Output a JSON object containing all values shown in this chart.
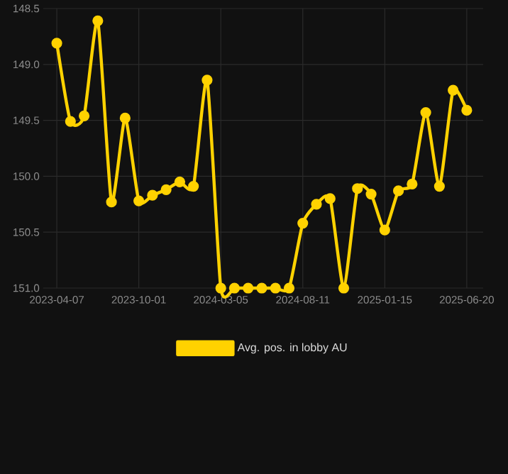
{
  "chart_data": {
    "type": "line",
    "categories": [
      "2023-04-07",
      null,
      null,
      null,
      null,
      null,
      "2023-10-01",
      null,
      null,
      null,
      null,
      null,
      "2024-03-05",
      null,
      null,
      null,
      null,
      null,
      "2024-08-11",
      null,
      null,
      null,
      null,
      null,
      "2025-01-15",
      null,
      null,
      null,
      null,
      null,
      "2025-06-20"
    ],
    "series": [
      {
        "name": "Avg. pos. in lobby AU",
        "color": "#ffd200",
        "values": [
          148.81,
          149.51,
          149.46,
          148.61,
          150.23,
          149.48,
          150.22,
          150.17,
          150.12,
          150.05,
          150.09,
          149.14,
          151.0,
          151.0,
          151.0,
          151.0,
          151.0,
          151.0,
          150.42,
          150.25,
          150.2,
          151.0,
          150.11,
          150.16,
          150.48,
          150.13,
          150.07,
          149.43,
          150.09,
          149.23,
          149.41
        ]
      }
    ],
    "ylim": [
      151.0,
      148.5
    ],
    "yticks": [
      {
        "value": 148.5,
        "label": "148.5"
      },
      {
        "value": 149,
        "label": "149.0"
      },
      {
        "value": 149.5,
        "label": "149.5"
      },
      {
        "value": 150,
        "label": "150.0"
      },
      {
        "value": 150.5,
        "label": "150.5"
      },
      {
        "value": 151,
        "label": "151.0"
      }
    ],
    "grid": true,
    "legend": "bottom",
    "marker": "circle",
    "line_style": "solid"
  }
}
